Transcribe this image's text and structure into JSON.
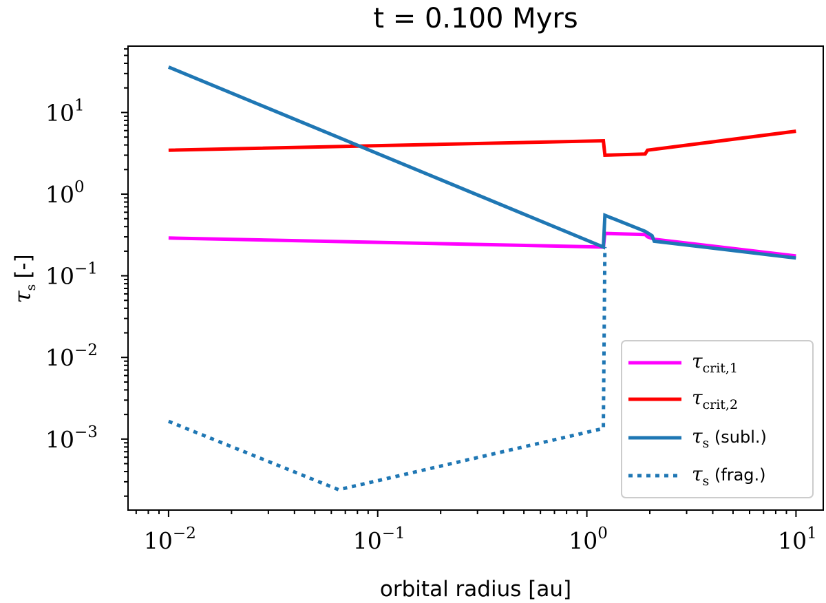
{
  "chart_data": {
    "type": "line",
    "title": "t = 0.100 Myrs",
    "xlabel": "orbital radius [au]",
    "ylabel": {
      "symbol": "τ",
      "sub": "s",
      "units": "[-]"
    },
    "xscale": "log",
    "yscale": "log",
    "xlim": [
      0.0064,
      13.5
    ],
    "ylim": [
      0.000135,
      65
    ],
    "xticks": [
      {
        "base": "10",
        "exp": "−2",
        "value": 0.01
      },
      {
        "base": "10",
        "exp": "−1",
        "value": 0.1
      },
      {
        "base": "10",
        "exp": "0",
        "value": 1
      },
      {
        "base": "10",
        "exp": "1",
        "value": 10
      }
    ],
    "yticks": [
      {
        "base": "10",
        "exp": "−3",
        "value": 0.001
      },
      {
        "base": "10",
        "exp": "−2",
        "value": 0.01
      },
      {
        "base": "10",
        "exp": "−1",
        "value": 0.1
      },
      {
        "base": "10",
        "exp": "0",
        "value": 1
      },
      {
        "base": "10",
        "exp": "1",
        "value": 10
      }
    ],
    "legend_position": "lower-right",
    "series": [
      {
        "name": "tau_crit_1",
        "label": {
          "symbol": "τ",
          "sub": "crit,1",
          "suffix": ""
        },
        "color": "#ff00ff",
        "style": "solid",
        "x": [
          0.01,
          1.2,
          1.22,
          1.9,
          1.95,
          2.1,
          10
        ],
        "y": [
          0.29,
          0.225,
          0.33,
          0.32,
          0.3,
          0.28,
          0.175
        ]
      },
      {
        "name": "tau_crit_2",
        "label": {
          "symbol": "τ",
          "sub": "crit,2",
          "suffix": ""
        },
        "color": "#ff0000",
        "style": "solid",
        "x": [
          0.01,
          1.2,
          1.22,
          1.9,
          1.95,
          10
        ],
        "y": [
          3.45,
          4.5,
          3.0,
          3.1,
          3.45,
          5.9
        ]
      },
      {
        "name": "tau_s_subl",
        "label": {
          "symbol": "τ",
          "sub": "s",
          "suffix": " (subl.)"
        },
        "color": "#1f77b4",
        "style": "solid",
        "x": [
          0.01,
          1.2,
          1.22,
          1.9,
          2.05,
          2.1,
          10
        ],
        "y": [
          36,
          0.225,
          0.55,
          0.35,
          0.31,
          0.265,
          0.165
        ]
      },
      {
        "name": "tau_s_frag",
        "label": {
          "symbol": "τ",
          "sub": "s",
          "suffix": " (frag.)"
        },
        "color": "#1f77b4",
        "style": "dotted",
        "x": [
          0.01,
          0.065,
          1.2,
          1.2,
          1.22
        ],
        "y": [
          0.00165,
          0.00024,
          0.00135,
          0.0016,
          0.225
        ]
      }
    ]
  }
}
